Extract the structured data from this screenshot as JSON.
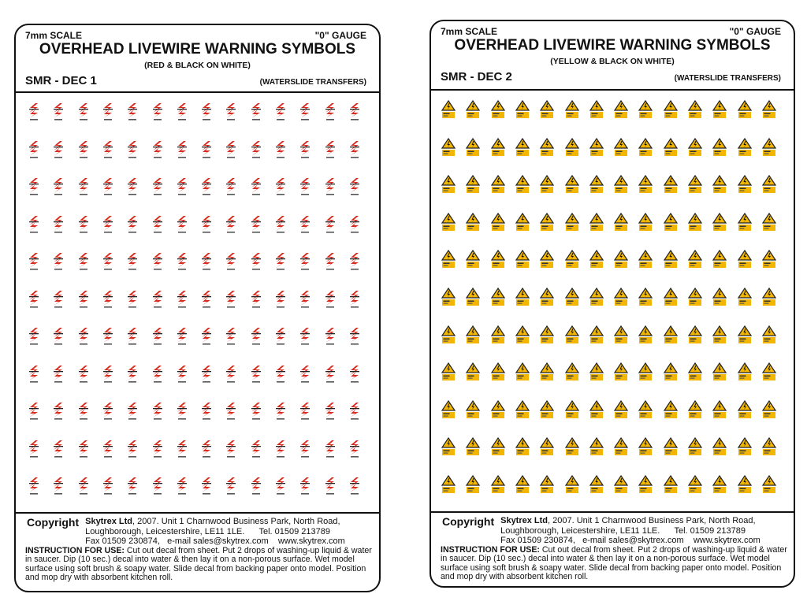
{
  "sheets": [
    {
      "scale": "7mm SCALE",
      "gauge": "\"0\" GAUGE",
      "title": "OVERHEAD LIVEWIRE WARNING SYMBOLS",
      "subtitle": "(RED & BLACK ON WHITE)",
      "code": "SMR - DEC 1",
      "type": "(WATERSLIDE TRANSFERS)",
      "icon": "red-lightning-flash-icon",
      "color": "#d92a1e",
      "columns": 14,
      "rows": 11
    },
    {
      "scale": "7mm SCALE",
      "gauge": "\"0\" GAUGE",
      "title": "OVERHEAD LIVEWIRE WARNING SYMBOLS",
      "subtitle": "(YELLOW & BLACK ON WHITE)",
      "code": "SMR - DEC 2",
      "type": "(WATERSLIDE TRANSFERS)",
      "icon": "yellow-danger-triangle-icon",
      "color": "#f2b600",
      "columns": 14,
      "rows": 11
    }
  ],
  "footer": {
    "copyright_label": "Copyright",
    "company": "Skytrex Ltd",
    "line1": ", 2007. Unit 1 Charnwood Business Park, North Road,",
    "line2": "Loughborough, Leicestershire, LE11 1LE.      Tel. 01509 213789",
    "line3": "Fax 01509 230874,   e-mail sales@skytrex.com    www.skytrex.com",
    "instruction_label": "INSTRUCTION FOR USE:",
    "instruction_text": " Cut out decal from sheet. Put 2 drops of washing-up liquid & water in saucer. Dip (10 sec.) decal into water & then lay it on a non-porous surface. Wet model surface using soft brush & soapy water. Slide decal from backing paper onto model. Position and mop dry with absorbent kitchen roll."
  }
}
